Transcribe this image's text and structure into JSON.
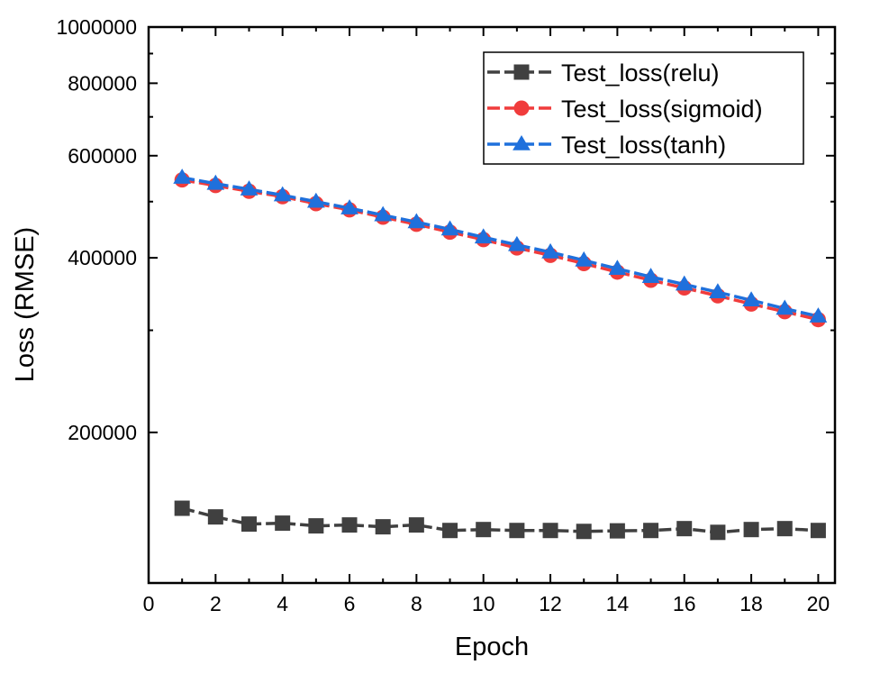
{
  "chart_data": {
    "type": "line",
    "title": "",
    "xlabel": "Epoch",
    "ylabel": "Loss (RMSE)",
    "xscale": "linear",
    "yscale": "log",
    "xlim": [
      0,
      20.5
    ],
    "ylim": [
      110000,
      1000000
    ],
    "xticks": [
      0,
      2,
      4,
      6,
      8,
      10,
      12,
      14,
      16,
      18,
      20
    ],
    "yticks": [
      200000,
      400000,
      600000,
      800000,
      1000000
    ],
    "grid": false,
    "legend_position": "top-right",
    "x": [
      1,
      2,
      3,
      4,
      5,
      6,
      7,
      8,
      9,
      10,
      11,
      12,
      13,
      14,
      15,
      16,
      17,
      18,
      19,
      20
    ],
    "series": [
      {
        "name": "Test_loss(relu)",
        "color": "#404040",
        "marker": "square",
        "values": [
          148000,
          143000,
          139000,
          139500,
          138000,
          138500,
          137500,
          138500,
          135500,
          136000,
          135500,
          135500,
          135000,
          135300,
          135500,
          136500,
          134500,
          136000,
          136500,
          135500
        ]
      },
      {
        "name": "Test_loss(sigmoid)",
        "color": "#f03c3c",
        "marker": "circle",
        "values": [
          545000,
          533000,
          521000,
          510000,
          496000,
          484000,
          470000,
          457000,
          443000,
          430000,
          416000,
          404000,
          391000,
          378000,
          366000,
          355000,
          344000,
          333000,
          323000,
          313000
        ]
      },
      {
        "name": "Test_loss(tanh)",
        "color": "#1f70dc",
        "marker": "triangle",
        "values": [
          550000,
          537000,
          525000,
          513000,
          500000,
          487000,
          474000,
          461000,
          448000,
          434000,
          421000,
          409000,
          396000,
          383000,
          371000,
          360000,
          349000,
          338000,
          327000,
          317000
        ]
      }
    ]
  }
}
